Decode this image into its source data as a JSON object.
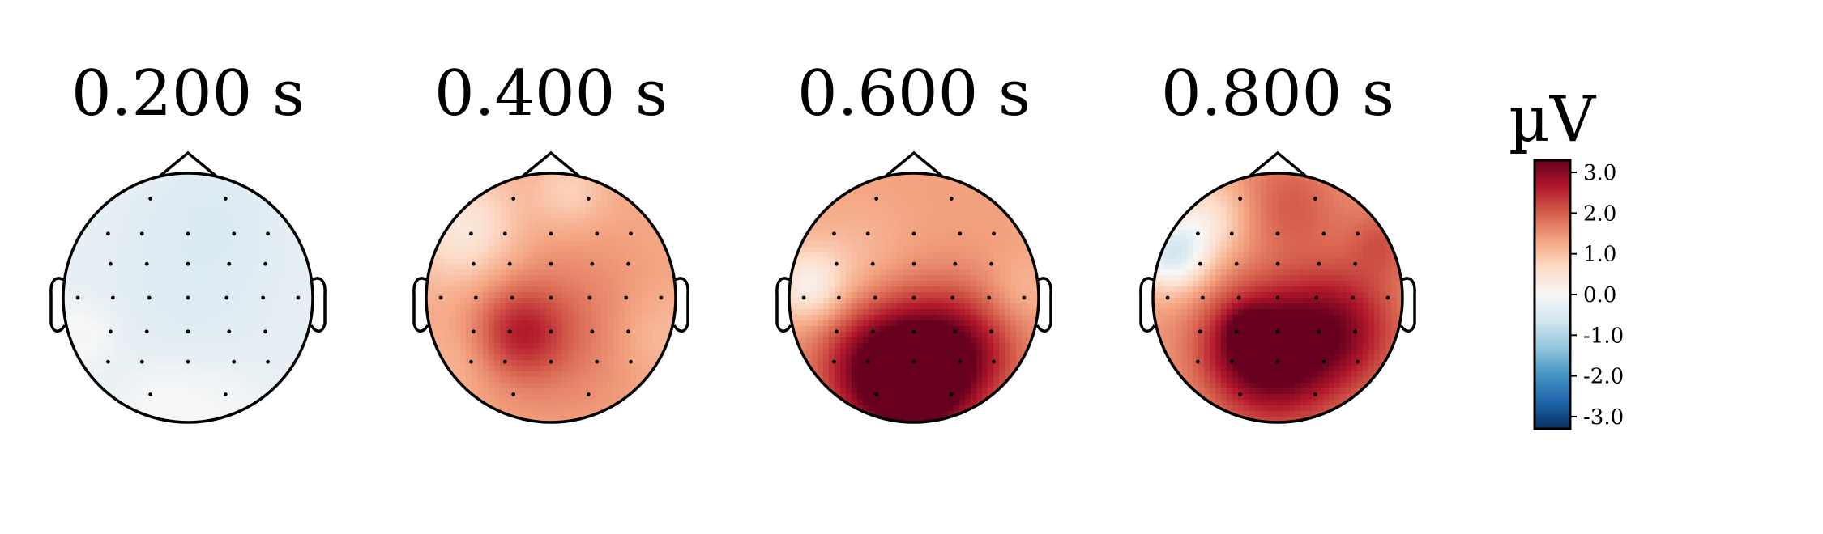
{
  "chart_data": {
    "type": "heatmap",
    "subtype": "scalp-topomap",
    "colormap": "RdBu_r",
    "colorbar": {
      "unit": "µV",
      "ticks": [
        3.0,
        2.0,
        1.0,
        0.0,
        -1.0,
        -2.0,
        -3.0
      ],
      "tick_labels": [
        "3.0",
        "2.0",
        "1.0",
        "0.0",
        "-1.0",
        "-2.0",
        "-3.0"
      ],
      "vmin": -3.3,
      "vmax": 3.3
    },
    "electrodes": [
      [
        -0.31,
        -0.82
      ],
      [
        0.31,
        -0.82
      ],
      [
        -0.66,
        -0.53
      ],
      [
        -0.38,
        -0.53
      ],
      [
        0.0,
        -0.53
      ],
      [
        0.38,
        -0.53
      ],
      [
        0.66,
        -0.53
      ],
      [
        -0.64,
        -0.28
      ],
      [
        -0.34,
        -0.28
      ],
      [
        0.0,
        -0.28
      ],
      [
        0.34,
        -0.28
      ],
      [
        0.64,
        -0.28
      ],
      [
        -0.91,
        0.0
      ],
      [
        -0.62,
        0.0
      ],
      [
        -0.32,
        0.0
      ],
      [
        0.0,
        0.0
      ],
      [
        0.32,
        0.0
      ],
      [
        0.62,
        0.0
      ],
      [
        0.91,
        0.0
      ],
      [
        -0.64,
        0.28
      ],
      [
        -0.34,
        0.28
      ],
      [
        0.0,
        0.28
      ],
      [
        0.34,
        0.28
      ],
      [
        0.64,
        0.28
      ],
      [
        -0.66,
        0.53
      ],
      [
        -0.38,
        0.53
      ],
      [
        0.0,
        0.53
      ],
      [
        0.38,
        0.53
      ],
      [
        0.66,
        0.53
      ],
      [
        -0.31,
        0.8
      ],
      [
        0.31,
        0.8
      ]
    ],
    "panels": [
      {
        "title": "0.200 s",
        "base": -0.25,
        "blobs": [
          [
            0.0,
            0.0,
            0.6,
            -0.15
          ],
          [
            0.2,
            -0.7,
            0.4,
            -0.15
          ],
          [
            -0.2,
            0.88,
            0.25,
            0.3
          ],
          [
            0.3,
            0.9,
            0.25,
            0.2
          ],
          [
            -0.85,
            0.3,
            0.18,
            0.35
          ]
        ]
      },
      {
        "title": "0.400 s",
        "base": 1.25,
        "blobs": [
          [
            -0.25,
            0.28,
            0.25,
            1.0
          ],
          [
            0.1,
            0.25,
            0.5,
            0.5
          ],
          [
            -0.7,
            -0.55,
            0.3,
            -0.9
          ],
          [
            0.15,
            -0.85,
            0.2,
            -0.5
          ],
          [
            0.85,
            0.3,
            0.25,
            -0.3
          ],
          [
            -0.75,
            0.5,
            0.25,
            -0.2
          ]
        ]
      },
      {
        "title": "0.600 s",
        "base": 1.35,
        "blobs": [
          [
            -0.25,
            0.55,
            0.35,
            1.9
          ],
          [
            0.3,
            0.45,
            0.35,
            1.8
          ],
          [
            0.0,
            0.85,
            0.3,
            1.2
          ],
          [
            -0.85,
            -0.1,
            0.2,
            -1.1
          ],
          [
            0.85,
            -0.05,
            0.2,
            -0.3
          ],
          [
            -0.5,
            -0.3,
            0.3,
            -0.3
          ]
        ]
      },
      {
        "title": "0.800 s",
        "base": 1.4,
        "blobs": [
          [
            -0.2,
            0.35,
            0.3,
            1.6
          ],
          [
            0.45,
            0.25,
            0.35,
            1.6
          ],
          [
            0.0,
            0.65,
            0.35,
            1.0
          ],
          [
            -0.85,
            -0.35,
            0.2,
            -1.9
          ],
          [
            -0.55,
            -0.65,
            0.22,
            -0.9
          ],
          [
            0.1,
            -0.75,
            0.3,
            0.6
          ],
          [
            0.85,
            -0.45,
            0.2,
            0.6
          ],
          [
            -0.25,
            0.25,
            0.1,
            0.8
          ]
        ]
      }
    ]
  }
}
